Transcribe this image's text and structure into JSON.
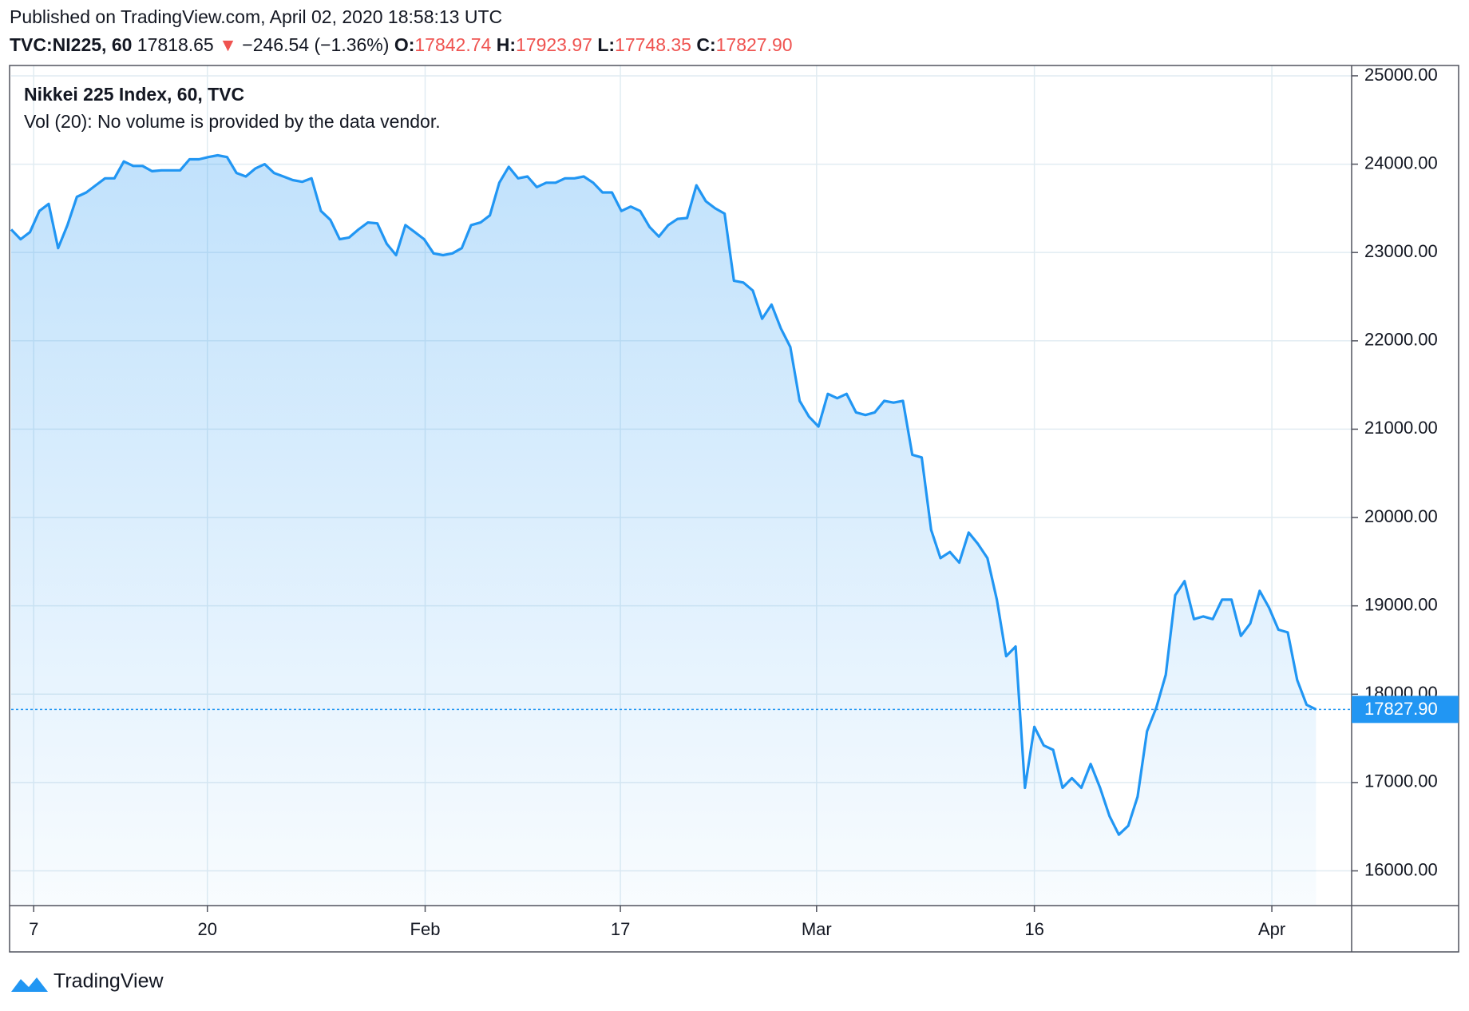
{
  "header": {
    "published": "Published on TradingView.com, April 02, 2020 18:58:13 UTC",
    "symbol": "TVC:NI225, 60",
    "last": "17818.65",
    "change": "−246.54 (−1.36%)",
    "open_label": "O:",
    "open": "17842.74",
    "high_label": "H:",
    "high": "17923.97",
    "low_label": "L:",
    "low": "17748.35",
    "close_label": "C:",
    "close": "17827.90"
  },
  "footer": {
    "brand": "TradingView"
  },
  "chart_data": {
    "type": "line",
    "title": "Nikkei 225 Index, 60, TVC",
    "subtitle": "Vol (20): No volume is provided by the data vendor.",
    "x": [
      0,
      1,
      2,
      3,
      4,
      5,
      6,
      7,
      8,
      9,
      10,
      11,
      12,
      13,
      14,
      15,
      16,
      17,
      18,
      19,
      20,
      21,
      22,
      23,
      24,
      25,
      26,
      27,
      28,
      29,
      30,
      31,
      32,
      33,
      34,
      35,
      36,
      37,
      38,
      39,
      40,
      41,
      42,
      43,
      44,
      45,
      46,
      47,
      48,
      49,
      50,
      51,
      52,
      53,
      54,
      55,
      56,
      57,
      58,
      59,
      60,
      61,
      62,
      63,
      64,
      65,
      66,
      67,
      68,
      69,
      70,
      71,
      72,
      73,
      74,
      75,
      76,
      77,
      78,
      79,
      80,
      81,
      82,
      83,
      84,
      85,
      86,
      87,
      88,
      89,
      90,
      91,
      92,
      93,
      94,
      95,
      96,
      97,
      98,
      99,
      100,
      101,
      102,
      103,
      104,
      105,
      106,
      107,
      108,
      109,
      110,
      111,
      112,
      113,
      114,
      115,
      116,
      117,
      118,
      119,
      120,
      121,
      122,
      123,
      124,
      125,
      126,
      127,
      128,
      129,
      130,
      131,
      132,
      133,
      134,
      135,
      136,
      137,
      138,
      139
    ],
    "series": [
      {
        "name": "Nikkei 225 Index",
        "color": "#2196f3",
        "values": [
          23260,
          23150,
          23230,
          23470,
          23550,
          23050,
          23310,
          23630,
          23680,
          23760,
          23840,
          23840,
          24030,
          23980,
          23980,
          23920,
          23930,
          23930,
          23930,
          24055,
          24055,
          24080,
          24100,
          24080,
          23900,
          23860,
          23950,
          24000,
          23900,
          23860,
          23820,
          23800,
          23840,
          23470,
          23370,
          23150,
          23170,
          23260,
          23340,
          23330,
          23100,
          22970,
          23310,
          23230,
          23150,
          22990,
          22970,
          22990,
          23050,
          23310,
          23340,
          23420,
          23790,
          23970,
          23840,
          23860,
          23740,
          23790,
          23790,
          23840,
          23840,
          23860,
          23790,
          23680,
          23680,
          23470,
          23520,
          23470,
          23290,
          23180,
          23310,
          23380,
          23390,
          23760,
          23580,
          23500,
          23440,
          22680,
          22660,
          22570,
          22250,
          22410,
          22140,
          21930,
          21320,
          21140,
          21030,
          21400,
          21350,
          21400,
          21190,
          21160,
          21190,
          21320,
          21300,
          21320,
          20710,
          20680,
          19860,
          19540,
          19610,
          19490,
          19830,
          19700,
          19540,
          19070,
          18430,
          18540,
          16940,
          17630,
          17420,
          17370,
          16940,
          17050,
          16940,
          17210,
          16940,
          16620,
          16410,
          16510,
          16840,
          17580,
          17850,
          18220,
          19120,
          19280,
          18850,
          18880,
          18850,
          19070,
          19070,
          18660,
          18800,
          19170,
          18980,
          18730,
          18700,
          18160,
          17880,
          17827.9
        ]
      }
    ],
    "xlim": [
      0,
      142.8
    ],
    "xticks": [
      {
        "value": 2.4,
        "label": "7"
      },
      {
        "value": 20.9,
        "label": "20"
      },
      {
        "value": 44.1,
        "label": "Feb"
      },
      {
        "value": 64.9,
        "label": "17"
      },
      {
        "value": 85.8,
        "label": "Mar"
      },
      {
        "value": 109,
        "label": "16"
      },
      {
        "value": 134.3,
        "label": "Apr"
      }
    ],
    "ylim": [
      15607,
      25117
    ],
    "yticks": [
      {
        "value": 16000,
        "label": "16000.00"
      },
      {
        "value": 17000,
        "label": "17000.00"
      },
      {
        "value": 18000,
        "label": "18000.00"
      },
      {
        "value": 19000,
        "label": "19000.00"
      },
      {
        "value": 20000,
        "label": "20000.00"
      },
      {
        "value": 21000,
        "label": "21000.00"
      },
      {
        "value": 22000,
        "label": "22000.00"
      },
      {
        "value": 23000,
        "label": "23000.00"
      },
      {
        "value": 24000,
        "label": "24000.00"
      },
      {
        "value": 25000,
        "label": "25000.00"
      }
    ],
    "price_line": {
      "value": 17827.9,
      "label": "17827.90"
    },
    "grid": true
  }
}
